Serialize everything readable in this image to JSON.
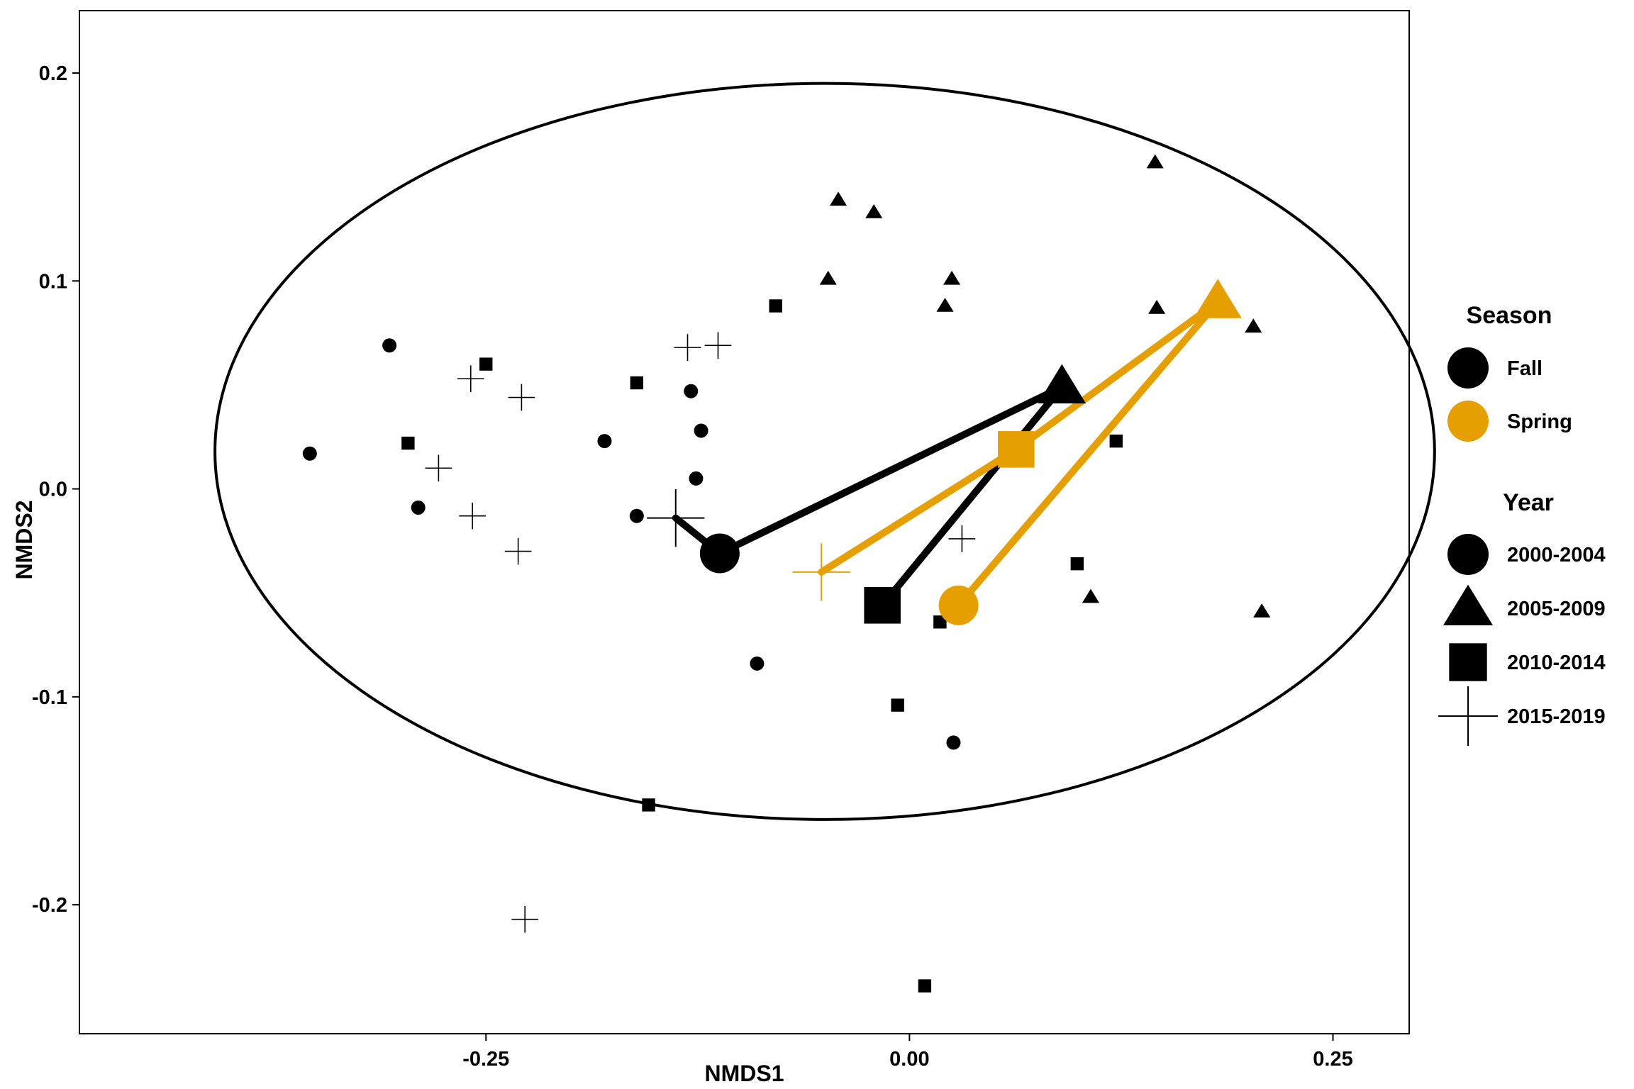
{
  "chart_data": {
    "type": "scatter",
    "xlabel": "NMDS1",
    "ylabel": "NMDS2",
    "xlim": [
      -0.49,
      0.295
    ],
    "ylim": [
      -0.262,
      0.23
    ],
    "xticks": [
      -0.25,
      0.0,
      0.25
    ],
    "xtick_labels": [
      "-0.25",
      "0.00",
      "0.25"
    ],
    "yticks": [
      -0.2,
      -0.1,
      0.0,
      0.1,
      0.2
    ],
    "ytick_labels": [
      "-0.2",
      "-0.1",
      "0.0",
      "0.1",
      "0.2"
    ],
    "grid": false,
    "legend_position": "right",
    "colors": {
      "Fall": "#000000",
      "Spring": "#E69F00"
    },
    "ellipse": {
      "center": [
        -0.05,
        0.018
      ],
      "radius": [
        0.36,
        0.177
      ]
    },
    "legend": {
      "season_title": "Season",
      "season": [
        {
          "label": "Fall",
          "color": "#000000"
        },
        {
          "label": "Spring",
          "color": "#E69F00"
        }
      ],
      "year_title": "Year",
      "year": [
        {
          "label": "2000-2004",
          "shape": "circle"
        },
        {
          "label": "2005-2009",
          "shape": "triangle"
        },
        {
          "label": "2010-2014",
          "shape": "square"
        },
        {
          "label": "2015-2019",
          "shape": "plus"
        }
      ]
    },
    "points": [
      {
        "x": -0.307,
        "y": 0.069,
        "shape": "circle"
      },
      {
        "x": -0.354,
        "y": 0.017,
        "shape": "circle"
      },
      {
        "x": -0.29,
        "y": -0.009,
        "shape": "circle"
      },
      {
        "x": -0.18,
        "y": 0.023,
        "shape": "circle"
      },
      {
        "x": -0.161,
        "y": -0.013,
        "shape": "circle"
      },
      {
        "x": -0.129,
        "y": 0.047,
        "shape": "circle"
      },
      {
        "x": -0.123,
        "y": 0.028,
        "shape": "circle"
      },
      {
        "x": -0.126,
        "y": 0.005,
        "shape": "circle"
      },
      {
        "x": -0.09,
        "y": -0.084,
        "shape": "circle"
      },
      {
        "x": 0.026,
        "y": -0.122,
        "shape": "circle"
      },
      {
        "x": -0.042,
        "y": 0.139,
        "shape": "triangle"
      },
      {
        "x": -0.021,
        "y": 0.133,
        "shape": "triangle"
      },
      {
        "x": -0.048,
        "y": 0.101,
        "shape": "triangle"
      },
      {
        "x": 0.025,
        "y": 0.101,
        "shape": "triangle"
      },
      {
        "x": 0.021,
        "y": 0.088,
        "shape": "triangle"
      },
      {
        "x": 0.145,
        "y": 0.157,
        "shape": "triangle"
      },
      {
        "x": 0.146,
        "y": 0.087,
        "shape": "triangle"
      },
      {
        "x": 0.203,
        "y": 0.078,
        "shape": "triangle"
      },
      {
        "x": 0.107,
        "y": -0.052,
        "shape": "triangle"
      },
      {
        "x": 0.208,
        "y": -0.059,
        "shape": "triangle"
      },
      {
        "x": -0.25,
        "y": 0.06,
        "shape": "square"
      },
      {
        "x": -0.296,
        "y": 0.022,
        "shape": "square"
      },
      {
        "x": -0.161,
        "y": 0.051,
        "shape": "square"
      },
      {
        "x": -0.079,
        "y": 0.088,
        "shape": "square"
      },
      {
        "x": 0.122,
        "y": 0.023,
        "shape": "square"
      },
      {
        "x": 0.099,
        "y": -0.036,
        "shape": "square"
      },
      {
        "x": 0.018,
        "y": -0.064,
        "shape": "square"
      },
      {
        "x": -0.007,
        "y": -0.104,
        "shape": "square"
      },
      {
        "x": -0.154,
        "y": -0.152,
        "shape": "square"
      },
      {
        "x": 0.009,
        "y": -0.239,
        "shape": "square"
      },
      {
        "x": -0.259,
        "y": 0.053,
        "shape": "plus"
      },
      {
        "x": -0.229,
        "y": 0.044,
        "shape": "plus"
      },
      {
        "x": -0.278,
        "y": 0.01,
        "shape": "plus"
      },
      {
        "x": -0.258,
        "y": -0.013,
        "shape": "plus"
      },
      {
        "x": -0.231,
        "y": -0.03,
        "shape": "plus"
      },
      {
        "x": -0.131,
        "y": 0.068,
        "shape": "plus"
      },
      {
        "x": -0.113,
        "y": 0.069,
        "shape": "plus"
      },
      {
        "x": 0.031,
        "y": -0.024,
        "shape": "plus"
      },
      {
        "x": -0.227,
        "y": -0.207,
        "shape": "plus"
      }
    ],
    "centroids": [
      {
        "season": "Fall",
        "period": "2000-2004",
        "shape": "circle",
        "x": -0.112,
        "y": -0.031
      },
      {
        "season": "Fall",
        "period": "2005-2009",
        "shape": "triangle",
        "x": 0.09,
        "y": 0.049
      },
      {
        "season": "Fall",
        "period": "2010-2014",
        "shape": "square",
        "x": -0.016,
        "y": -0.056
      },
      {
        "season": "Fall",
        "period": "2015-2019",
        "shape": "plus",
        "x": -0.138,
        "y": -0.014
      },
      {
        "season": "Spring",
        "period": "2000-2004",
        "shape": "circle",
        "x": 0.029,
        "y": -0.056
      },
      {
        "season": "Spring",
        "period": "2005-2009",
        "shape": "triangle",
        "x": 0.182,
        "y": 0.09
      },
      {
        "season": "Spring",
        "period": "2010-2014",
        "shape": "square",
        "x": 0.063,
        "y": 0.019
      },
      {
        "season": "Spring",
        "period": "2015-2019",
        "shape": "plus",
        "x": -0.052,
        "y": -0.04
      }
    ],
    "paths": [
      {
        "season": "Fall",
        "order": [
          "2015-2019",
          "2000-2004",
          "2005-2009",
          "2010-2014"
        ]
      },
      {
        "season": "Spring",
        "order": [
          "2015-2019",
          "2010-2014",
          "2005-2009",
          "2000-2004"
        ]
      }
    ]
  }
}
